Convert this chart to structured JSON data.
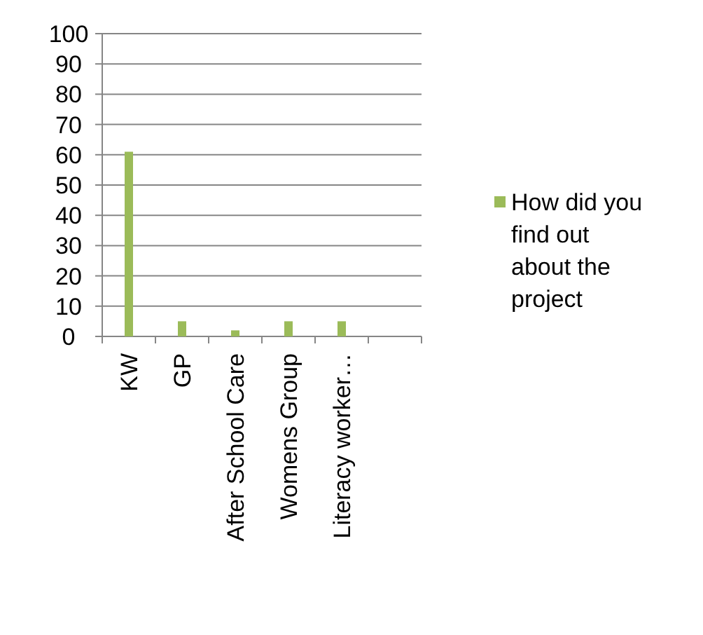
{
  "chart_data": {
    "type": "bar",
    "categories": [
      "KW",
      "GP",
      "After School Care",
      "Womens Group",
      "Literacy worker…",
      null
    ],
    "series": [
      {
        "name": "How did you find out about the project",
        "color": "#9bbb59",
        "values": [
          61,
          5,
          2,
          5,
          5,
          null
        ]
      }
    ],
    "ylim": [
      0,
      100
    ],
    "yticks": [
      0,
      10,
      20,
      30,
      40,
      50,
      60,
      70,
      80,
      90,
      100
    ],
    "grid": "y",
    "legend": "right"
  }
}
